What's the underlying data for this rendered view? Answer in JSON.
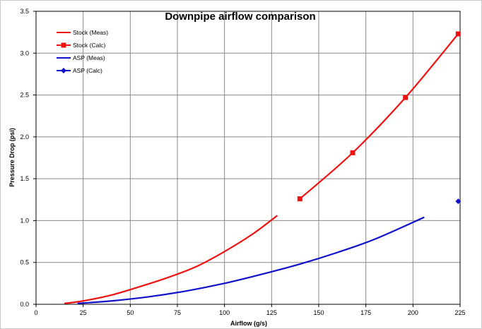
{
  "chart_data": {
    "type": "line",
    "title": "Downpipe airflow comparison",
    "xlabel": "Airflow (g/s)",
    "ylabel": "Pressure Drop (psi)",
    "xlim": [
      0,
      225
    ],
    "ylim": [
      0,
      3.5
    ],
    "x_ticks": [
      "0",
      "25",
      "50",
      "75",
      "100",
      "125",
      "150",
      "175",
      "200",
      "225"
    ],
    "y_ticks": [
      "0.0",
      "0.5",
      "1.0",
      "1.5",
      "2.0",
      "2.5",
      "3.0",
      "3.5"
    ],
    "grid": true,
    "legend_position": "top-left",
    "series": [
      {
        "name": "Stock (Meas)",
        "color": "#ee1111",
        "marker": "none",
        "line": "smooth",
        "points": [
          [
            15,
            0.01
          ],
          [
            25,
            0.04
          ],
          [
            40,
            0.11
          ],
          [
            55,
            0.21
          ],
          [
            70,
            0.32
          ],
          [
            85,
            0.45
          ],
          [
            100,
            0.63
          ],
          [
            115,
            0.84
          ],
          [
            128,
            1.06
          ]
        ]
      },
      {
        "name": "Stock (Calc)",
        "color": "#ee1111",
        "marker": "square",
        "line": "smooth",
        "points": [
          [
            140,
            1.26
          ],
          [
            168,
            1.81
          ],
          [
            196,
            2.47
          ],
          [
            224,
            3.23
          ]
        ]
      },
      {
        "name": "ASP (Meas)",
        "color": "#1111cc",
        "marker": "none",
        "line": "smooth",
        "points": [
          [
            22,
            0.01
          ],
          [
            40,
            0.04
          ],
          [
            60,
            0.09
          ],
          [
            80,
            0.16
          ],
          [
            100,
            0.25
          ],
          [
            120,
            0.36
          ],
          [
            140,
            0.48
          ],
          [
            160,
            0.62
          ],
          [
            180,
            0.78
          ],
          [
            206,
            1.04
          ]
        ]
      },
      {
        "name": "ASP (Calc)",
        "color": "#1111cc",
        "marker": "diamond",
        "line": "none",
        "points": [
          [
            224,
            1.23
          ]
        ]
      }
    ]
  }
}
